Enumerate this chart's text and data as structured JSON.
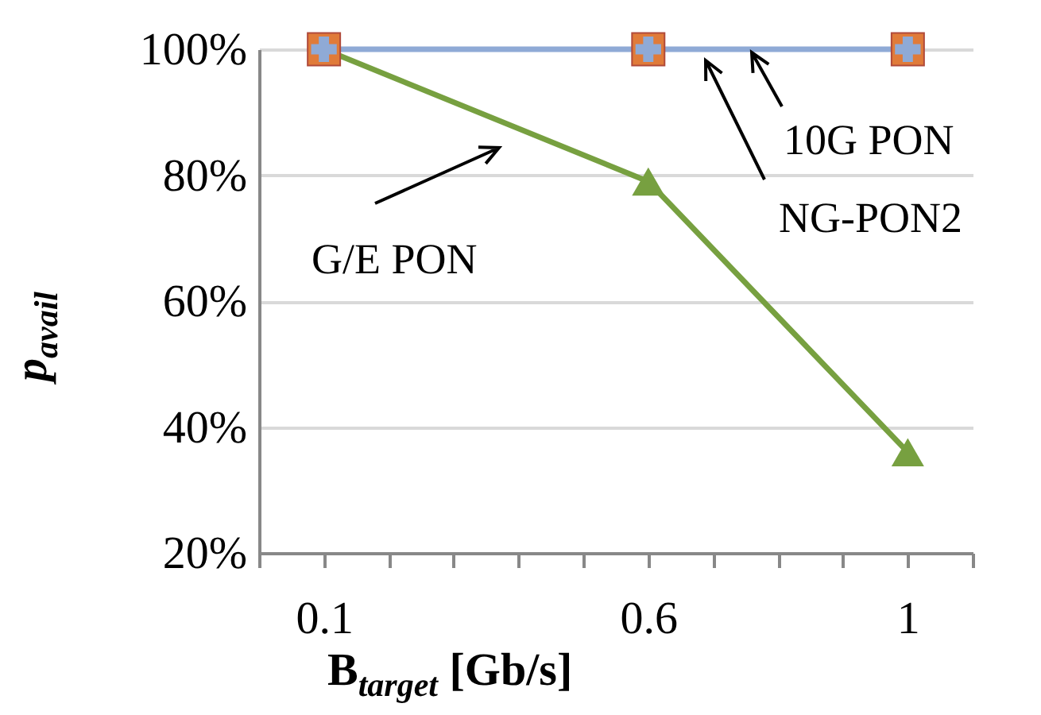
{
  "chart_data": {
    "type": "line",
    "xlabel": "B$_{target}$ [Gb/s]",
    "ylabel": "p$_{avail}$",
    "x": [
      0.1,
      0.6,
      1
    ],
    "series": [
      {
        "name": "G/E PON",
        "color": "#77a040",
        "marker": "triangle",
        "values": [
          100,
          79,
          36
        ]
      },
      {
        "name": "NG-PON2",
        "color": "#8faad6",
        "marker": "cross",
        "values": [
          100,
          100,
          100
        ]
      },
      {
        "name": "10G PON",
        "type": "scatter",
        "color": "#e07b39",
        "marker": "square",
        "values": [
          100,
          100,
          100
        ]
      }
    ],
    "xlim": [
      0,
      1.1
    ],
    "xticks": [
      {
        "value": 0,
        "label": null
      },
      {
        "value": 0.1,
        "label": "0.1"
      },
      {
        "value": 0.2,
        "label": null
      },
      {
        "value": 0.3,
        "label": null
      },
      {
        "value": 0.4,
        "label": null
      },
      {
        "value": 0.5,
        "label": null
      },
      {
        "value": 0.6,
        "label": "0.6"
      },
      {
        "value": 0.7,
        "label": null
      },
      {
        "value": 0.8,
        "label": null
      },
      {
        "value": 0.9,
        "label": null
      },
      {
        "value": 1,
        "label": "1"
      },
      {
        "value": 1.1,
        "label": null
      }
    ],
    "ylim": [
      20,
      100
    ],
    "yticks": [
      {
        "value": 20,
        "label": "20%"
      },
      {
        "value": 40,
        "label": "40%"
      },
      {
        "value": 60,
        "label": "60%"
      },
      {
        "value": 80,
        "label": "80%"
      },
      {
        "value": 100,
        "label": "100%"
      }
    ],
    "grid": "y",
    "legend": false,
    "line_style": "solid"
  }
}
